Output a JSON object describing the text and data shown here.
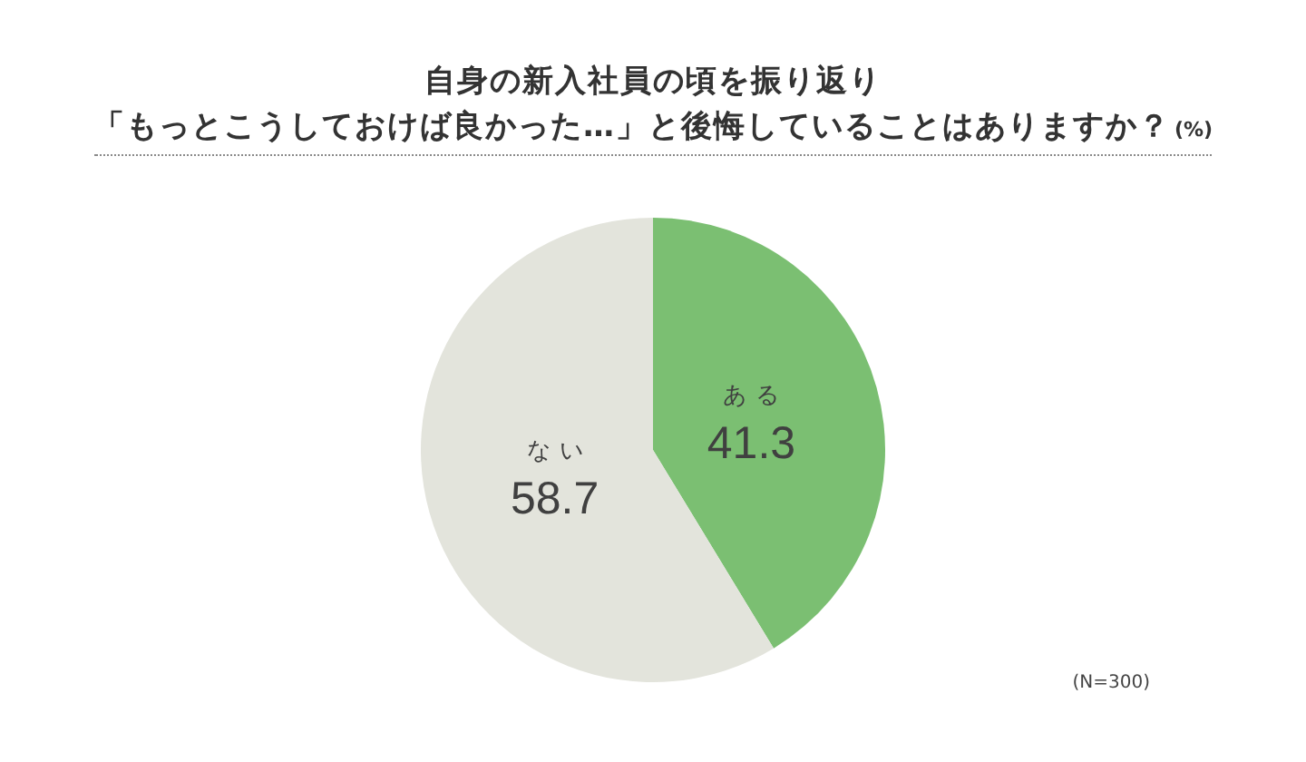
{
  "chart_data": {
    "type": "pie",
    "title": "自身の新入社員の頃を振り返り",
    "subtitle": "「もっとこうしておけば良かった…」と後悔していることはありますか？",
    "annotations": [
      "(%)",
      "(N=300)"
    ],
    "categories": [
      "ある",
      "ない"
    ],
    "values": [
      41.3,
      58.7
    ],
    "colors": [
      "#7bbf72",
      "#e3e4dc"
    ],
    "data_labels": true
  }
}
